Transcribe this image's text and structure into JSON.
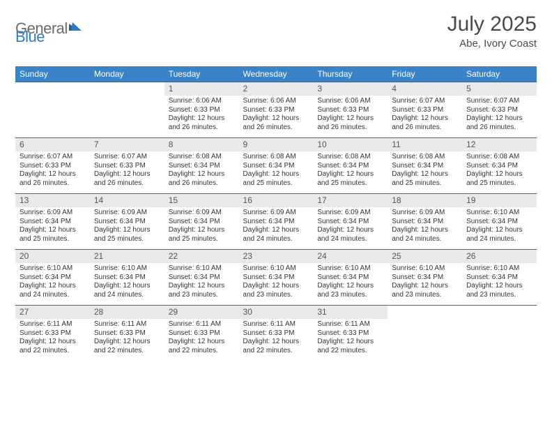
{
  "logo": {
    "text1": "General",
    "text2": "Blue"
  },
  "title": "July 2025",
  "location": "Abe, Ivory Coast",
  "colors": {
    "header_bg": "#3b83c7",
    "header_text": "#ffffff",
    "row_border": "#2f6aa8",
    "daynum_bg": "#e9e9e9",
    "logo_gray": "#6b6b6b",
    "logo_blue": "#2f7bc4",
    "flag_blue": "#1f5fa8"
  },
  "fonts": {
    "title_size_pt": 23,
    "location_size_pt": 11,
    "dayheader_size_pt": 9,
    "daynum_size_pt": 9,
    "body_size_pt": 8
  },
  "day_headers": [
    "Sunday",
    "Monday",
    "Tuesday",
    "Wednesday",
    "Thursday",
    "Friday",
    "Saturday"
  ],
  "weeks": [
    [
      null,
      null,
      {
        "n": "1",
        "sr": "6:06 AM",
        "ss": "6:33 PM",
        "dl": "12 hours and 26 minutes."
      },
      {
        "n": "2",
        "sr": "6:06 AM",
        "ss": "6:33 PM",
        "dl": "12 hours and 26 minutes."
      },
      {
        "n": "3",
        "sr": "6:06 AM",
        "ss": "6:33 PM",
        "dl": "12 hours and 26 minutes."
      },
      {
        "n": "4",
        "sr": "6:07 AM",
        "ss": "6:33 PM",
        "dl": "12 hours and 26 minutes."
      },
      {
        "n": "5",
        "sr": "6:07 AM",
        "ss": "6:33 PM",
        "dl": "12 hours and 26 minutes."
      }
    ],
    [
      {
        "n": "6",
        "sr": "6:07 AM",
        "ss": "6:33 PM",
        "dl": "12 hours and 26 minutes."
      },
      {
        "n": "7",
        "sr": "6:07 AM",
        "ss": "6:33 PM",
        "dl": "12 hours and 26 minutes."
      },
      {
        "n": "8",
        "sr": "6:08 AM",
        "ss": "6:34 PM",
        "dl": "12 hours and 26 minutes."
      },
      {
        "n": "9",
        "sr": "6:08 AM",
        "ss": "6:34 PM",
        "dl": "12 hours and 25 minutes."
      },
      {
        "n": "10",
        "sr": "6:08 AM",
        "ss": "6:34 PM",
        "dl": "12 hours and 25 minutes."
      },
      {
        "n": "11",
        "sr": "6:08 AM",
        "ss": "6:34 PM",
        "dl": "12 hours and 25 minutes."
      },
      {
        "n": "12",
        "sr": "6:08 AM",
        "ss": "6:34 PM",
        "dl": "12 hours and 25 minutes."
      }
    ],
    [
      {
        "n": "13",
        "sr": "6:09 AM",
        "ss": "6:34 PM",
        "dl": "12 hours and 25 minutes."
      },
      {
        "n": "14",
        "sr": "6:09 AM",
        "ss": "6:34 PM",
        "dl": "12 hours and 25 minutes."
      },
      {
        "n": "15",
        "sr": "6:09 AM",
        "ss": "6:34 PM",
        "dl": "12 hours and 25 minutes."
      },
      {
        "n": "16",
        "sr": "6:09 AM",
        "ss": "6:34 PM",
        "dl": "12 hours and 24 minutes."
      },
      {
        "n": "17",
        "sr": "6:09 AM",
        "ss": "6:34 PM",
        "dl": "12 hours and 24 minutes."
      },
      {
        "n": "18",
        "sr": "6:09 AM",
        "ss": "6:34 PM",
        "dl": "12 hours and 24 minutes."
      },
      {
        "n": "19",
        "sr": "6:10 AM",
        "ss": "6:34 PM",
        "dl": "12 hours and 24 minutes."
      }
    ],
    [
      {
        "n": "20",
        "sr": "6:10 AM",
        "ss": "6:34 PM",
        "dl": "12 hours and 24 minutes."
      },
      {
        "n": "21",
        "sr": "6:10 AM",
        "ss": "6:34 PM",
        "dl": "12 hours and 24 minutes."
      },
      {
        "n": "22",
        "sr": "6:10 AM",
        "ss": "6:34 PM",
        "dl": "12 hours and 23 minutes."
      },
      {
        "n": "23",
        "sr": "6:10 AM",
        "ss": "6:34 PM",
        "dl": "12 hours and 23 minutes."
      },
      {
        "n": "24",
        "sr": "6:10 AM",
        "ss": "6:34 PM",
        "dl": "12 hours and 23 minutes."
      },
      {
        "n": "25",
        "sr": "6:10 AM",
        "ss": "6:34 PM",
        "dl": "12 hours and 23 minutes."
      },
      {
        "n": "26",
        "sr": "6:10 AM",
        "ss": "6:34 PM",
        "dl": "12 hours and 23 minutes."
      }
    ],
    [
      {
        "n": "27",
        "sr": "6:11 AM",
        "ss": "6:33 PM",
        "dl": "12 hours and 22 minutes."
      },
      {
        "n": "28",
        "sr": "6:11 AM",
        "ss": "6:33 PM",
        "dl": "12 hours and 22 minutes."
      },
      {
        "n": "29",
        "sr": "6:11 AM",
        "ss": "6:33 PM",
        "dl": "12 hours and 22 minutes."
      },
      {
        "n": "30",
        "sr": "6:11 AM",
        "ss": "6:33 PM",
        "dl": "12 hours and 22 minutes."
      },
      {
        "n": "31",
        "sr": "6:11 AM",
        "ss": "6:33 PM",
        "dl": "12 hours and 22 minutes."
      },
      null,
      null
    ]
  ],
  "labels": {
    "sunrise": "Sunrise:",
    "sunset": "Sunset:",
    "daylight": "Daylight:"
  }
}
